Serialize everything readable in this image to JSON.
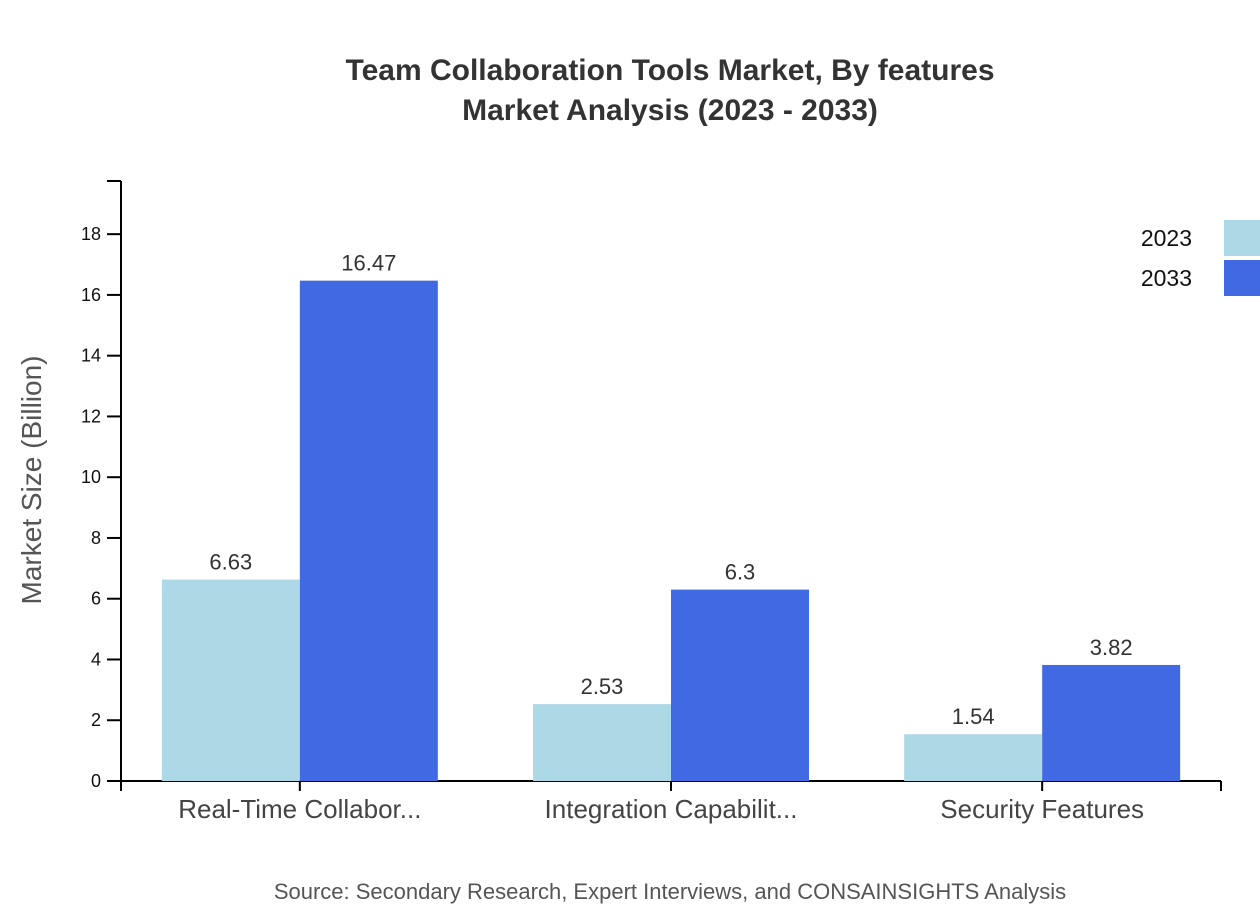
{
  "chart_data": {
    "type": "bar",
    "title": "Team Collaboration Tools Market, By features",
    "subtitle": "Market Analysis (2023 - 2033)",
    "xlabel": "",
    "ylabel": "Market Size (Billion)",
    "categories": [
      "Real-Time Collabor...",
      "Integration Capabilit...",
      "Security Features"
    ],
    "series": [
      {
        "name": "2023",
        "color": "#ADD8E6",
        "values": [
          6.63,
          2.53,
          1.54
        ],
        "labels": [
          "6.63",
          "2.53",
          "1.54"
        ]
      },
      {
        "name": "2033",
        "color": "#4169E1",
        "values": [
          16.47,
          6.3,
          3.82
        ],
        "labels": [
          "16.47",
          "6.3",
          "3.82"
        ]
      }
    ],
    "ylim": [
      0,
      19.75
    ],
    "yticks": [
      0,
      2,
      4,
      6,
      8,
      10,
      12,
      14,
      16,
      18
    ],
    "grid": false,
    "legend": "top-right"
  },
  "source": "Source: Secondary Research, Expert Interviews, and CONSAINSIGHTS Analysis"
}
